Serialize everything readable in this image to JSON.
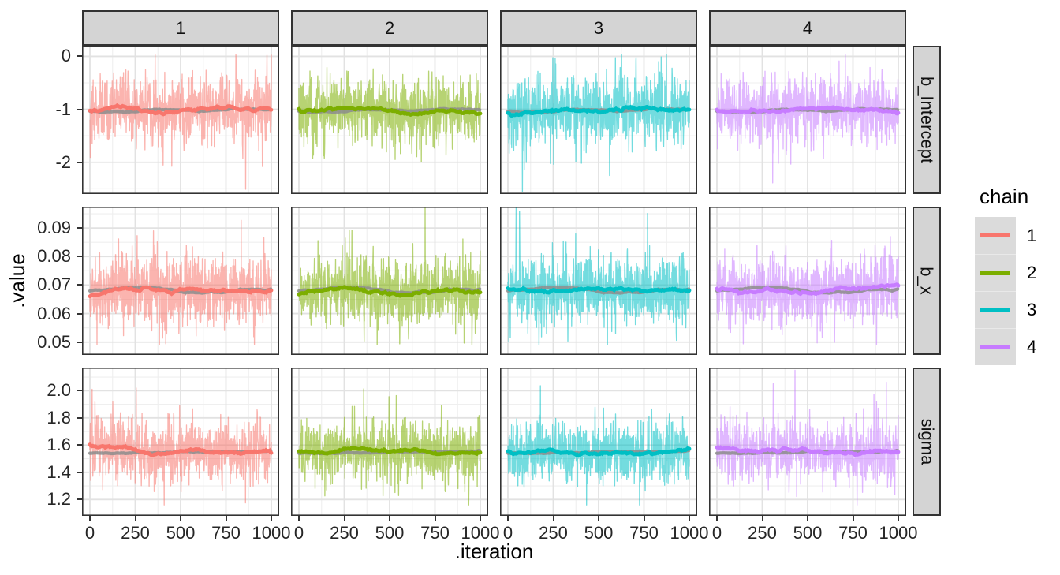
{
  "figure": {
    "background": "#FFFFFF"
  },
  "chart_data": {
    "type": "line",
    "subtype": "mcmc-trace-facet-grid",
    "title": "",
    "xlabel": ".iteration",
    "ylabel": ".value",
    "x": {
      "min": 0,
      "max": 1000,
      "ticks": [
        0,
        250,
        500,
        750,
        1000
      ],
      "tick_labels": [
        "0",
        "250",
        "500",
        "750",
        "1000"
      ],
      "minor_ticks": [
        125,
        375,
        625,
        875
      ]
    },
    "facet_cols": [
      "1",
      "2",
      "3",
      "4"
    ],
    "facet_rows": [
      "b_Intercept",
      "b_x",
      "sigma"
    ],
    "rows": [
      {
        "name": "b_Intercept",
        "ylim": [
          -2.6,
          0.2
        ],
        "ticks": [
          0,
          -1,
          -2
        ],
        "tick_labels": [
          "0",
          "-1",
          "-2"
        ],
        "minor_ticks": [
          -0.5,
          -1.5,
          -2.5
        ],
        "mean": -1.02,
        "sd": 0.3,
        "min": -2.58,
        "max": 0.03,
        "warmup_drift": [
          0,
          0,
          0,
          0
        ]
      },
      {
        "name": "b_x",
        "ylim": [
          0.0455,
          0.0975
        ],
        "ticks": [
          0.09,
          0.08,
          0.07,
          0.06,
          0.05
        ],
        "tick_labels": [
          "0.09",
          "0.08",
          "0.07",
          "0.06",
          "0.05"
        ],
        "minor_ticks": [
          0.095,
          0.085,
          0.075,
          0.065,
          0.055
        ],
        "mean": 0.068,
        "sd": 0.0058,
        "min": 0.049,
        "max": 0.0972,
        "warmup_drift": [
          0,
          0,
          0,
          0
        ]
      },
      {
        "name": "sigma",
        "ylim": [
          1.08,
          2.17
        ],
        "ticks": [
          2.0,
          1.8,
          1.6,
          1.4,
          1.2
        ],
        "tick_labels": [
          "2.0",
          "1.8",
          "1.6",
          "1.4",
          "1.2"
        ],
        "minor_ticks": [
          2.1,
          1.9,
          1.7,
          1.5,
          1.3,
          1.1
        ],
        "mean": 1.548,
        "sd": 0.105,
        "min": 1.16,
        "max": 2.16,
        "warmup_drift": [
          0.06,
          0.025,
          0.02,
          0.035
        ]
      }
    ],
    "series": [
      {
        "name": "1",
        "color": "#F8766D"
      },
      {
        "name": "2",
        "color": "#7CAE00"
      },
      {
        "name": "3",
        "color": "#00BFC4"
      },
      {
        "name": "4",
        "color": "#C77CFF"
      }
    ],
    "legend": {
      "title": "chain",
      "position": "right",
      "entries": [
        "1",
        "2",
        "3",
        "4"
      ]
    },
    "n_iterations": 1000,
    "notable_extremes": [
      {
        "row": "b_Intercept",
        "chain": "3",
        "iteration": 80,
        "value": -2.55
      },
      {
        "row": "b_Intercept",
        "chain": "3",
        "iteration": 560,
        "value": -2.25
      },
      {
        "row": "b_Intercept",
        "chain": "1",
        "iteration": 950,
        "value": -2.08
      },
      {
        "row": "b_Intercept",
        "chain": "1",
        "iteration": 975,
        "value": 0.02
      },
      {
        "row": "b_x",
        "chain": "3",
        "iteration": 45,
        "value": 0.0972
      },
      {
        "row": "b_x",
        "chain": "1",
        "iteration": 350,
        "value": 0.089
      },
      {
        "row": "sigma",
        "chain": "4",
        "iteration": 430,
        "value": 2.15
      },
      {
        "row": "sigma",
        "chain": "1",
        "iteration": 12,
        "value": 2.01
      },
      {
        "row": "sigma",
        "chain": "1",
        "iteration": 255,
        "value": 2.02
      }
    ],
    "colors": {
      "strip_bg": "#D4D4D4",
      "strip_border": "#333333",
      "panel_border": "#333333",
      "grid_major": "#E2E2E2",
      "grid_minor": "#EFEFEF",
      "tick": "#333333",
      "tick_label": "#262626",
      "axis_title": "#000000",
      "legend_key_bg": "#DBDBDB",
      "smooth_underlay": "#8C8C8C"
    }
  }
}
